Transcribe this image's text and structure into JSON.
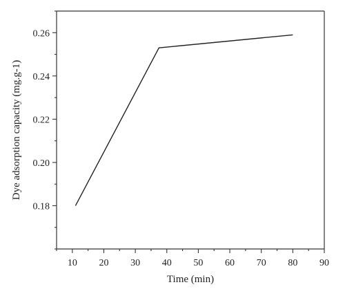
{
  "chart_data": {
    "type": "line",
    "xlabel": "Time (min)",
    "ylabel": "Dye adsorption capacity (mg.g-1)",
    "xlim": [
      5,
      90
    ],
    "ylim": [
      0.16,
      0.27
    ],
    "xticks": [
      10,
      20,
      30,
      40,
      50,
      60,
      70,
      80,
      90
    ],
    "xtick_labels": [
      "10",
      "20",
      "30",
      "40",
      "50",
      "60",
      "70",
      "80",
      "90"
    ],
    "yticks": [
      0.18,
      0.2,
      0.22,
      0.24,
      0.26
    ],
    "ytick_labels": [
      "0.18",
      "0.20",
      "0.22",
      "0.24",
      "0.26"
    ],
    "grid": false,
    "series": [
      {
        "x": [
          11,
          37.5,
          80
        ],
        "y": [
          0.18,
          0.253,
          0.259
        ]
      }
    ]
  }
}
